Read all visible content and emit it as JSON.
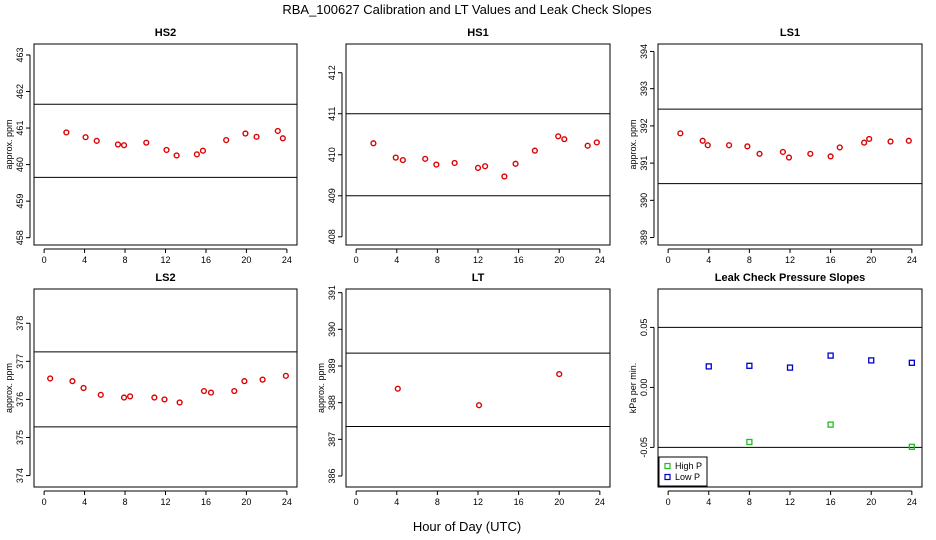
{
  "figure": {
    "title": "RBA_100627  Calibration and LT Values and Leak Check Slopes",
    "xlabel": "Hour of Day (UTC)"
  },
  "chart_data": [
    {
      "type": "scatter",
      "title": "HS2",
      "ylabel": "approx. ppm",
      "xlim": [
        -1,
        25
      ],
      "ylim": [
        457.8,
        463.3
      ],
      "xticks": [
        0,
        4,
        8,
        12,
        16,
        20,
        24
      ],
      "yticks": [
        458,
        459,
        460,
        461,
        462,
        463
      ],
      "hlines": [
        461.65,
        459.65
      ],
      "series": [
        {
          "color": "#dd0000",
          "marker": "circle",
          "x": [
            2.2,
            4.1,
            5.2,
            7.3,
            7.9,
            10.1,
            12.1,
            13.1,
            15.1,
            15.7,
            18.0,
            19.9,
            21.0,
            23.1,
            23.6
          ],
          "y": [
            460.88,
            460.75,
            460.65,
            460.55,
            460.53,
            460.6,
            460.4,
            460.25,
            460.28,
            460.38,
            460.67,
            460.85,
            460.76,
            460.92,
            460.72
          ]
        }
      ]
    },
    {
      "type": "scatter",
      "title": "HS1",
      "ylabel": "",
      "xlim": [
        -1,
        25
      ],
      "ylim": [
        407.8,
        412.7
      ],
      "xticks": [
        0,
        4,
        8,
        12,
        16,
        20,
        24
      ],
      "yticks": [
        408,
        409,
        410,
        411,
        412
      ],
      "hlines": [
        411.0,
        409.0
      ],
      "series": [
        {
          "color": "#dd0000",
          "marker": "circle",
          "x": [
            1.7,
            3.9,
            4.6,
            6.8,
            7.9,
            9.7,
            12.0,
            12.7,
            14.6,
            15.7,
            17.6,
            19.9,
            20.5,
            22.8,
            23.7
          ],
          "y": [
            410.28,
            409.93,
            409.87,
            409.9,
            409.76,
            409.8,
            409.68,
            409.72,
            409.47,
            409.78,
            410.1,
            410.45,
            410.38,
            410.22,
            410.3
          ]
        }
      ]
    },
    {
      "type": "scatter",
      "title": "LS1",
      "ylabel": "approx. ppm",
      "xlim": [
        -1,
        25
      ],
      "ylim": [
        388.8,
        394.2
      ],
      "xticks": [
        0,
        4,
        8,
        12,
        16,
        20,
        24
      ],
      "yticks": [
        389,
        390,
        391,
        392,
        393,
        394
      ],
      "hlines": [
        392.45,
        390.45
      ],
      "series": [
        {
          "color": "#dd0000",
          "marker": "circle",
          "x": [
            1.2,
            3.4,
            3.9,
            6.0,
            7.8,
            9.0,
            11.3,
            11.9,
            14.0,
            16.0,
            16.9,
            19.3,
            19.8,
            21.9,
            23.7
          ],
          "y": [
            391.8,
            391.6,
            391.48,
            391.48,
            391.45,
            391.25,
            391.3,
            391.15,
            391.25,
            391.18,
            391.42,
            391.55,
            391.65,
            391.58,
            391.6
          ]
        }
      ]
    },
    {
      "type": "scatter",
      "title": "LS2",
      "ylabel": "approx. ppm",
      "xlim": [
        -1,
        25
      ],
      "ylim": [
        373.7,
        378.9
      ],
      "xticks": [
        0,
        4,
        8,
        12,
        16,
        20,
        24
      ],
      "yticks": [
        374,
        375,
        376,
        377,
        378
      ],
      "hlines": [
        377.25,
        375.28
      ],
      "series": [
        {
          "color": "#dd0000",
          "marker": "circle",
          "x": [
            0.6,
            2.8,
            3.9,
            5.6,
            7.9,
            8.5,
            10.9,
            11.9,
            13.4,
            15.8,
            16.5,
            18.8,
            19.8,
            21.6,
            23.9
          ],
          "y": [
            376.55,
            376.48,
            376.3,
            376.12,
            376.05,
            376.08,
            376.05,
            376.0,
            375.92,
            376.22,
            376.18,
            376.22,
            376.48,
            376.52,
            376.62
          ]
        }
      ]
    },
    {
      "type": "scatter",
      "title": "LT",
      "ylabel": "approx. ppm",
      "xlim": [
        -1,
        25
      ],
      "ylim": [
        385.7,
        391.1
      ],
      "xticks": [
        0,
        4,
        8,
        12,
        16,
        20,
        24
      ],
      "yticks": [
        386,
        387,
        388,
        389,
        390,
        391
      ],
      "hlines": [
        389.35,
        387.35
      ],
      "series": [
        {
          "color": "#dd0000",
          "marker": "circle",
          "x": [
            4.1,
            12.1,
            20.0
          ],
          "y": [
            388.38,
            387.93,
            388.78
          ]
        }
      ]
    },
    {
      "type": "scatter",
      "title": "Leak Check Pressure Slopes",
      "ylabel": "kPa per min.",
      "xlim": [
        -1,
        25
      ],
      "ylim": [
        -0.083,
        0.082
      ],
      "xticks": [
        0,
        4,
        8,
        12,
        16,
        20,
        24
      ],
      "yticks": [
        -0.05,
        0.0,
        0.05
      ],
      "ytick_labels": [
        "-0.05",
        "0.00",
        "0.05"
      ],
      "hlines": [
        0.05,
        -0.05
      ],
      "legend": {
        "position": "bottom-left",
        "entries": [
          "High P",
          "Low P"
        ]
      },
      "series": [
        {
          "name": "High P",
          "color": "#22bb22",
          "marker": "square",
          "x": [
            8.0,
            16.0,
            24.0
          ],
          "y": [
            -0.0455,
            -0.031,
            -0.0495
          ]
        },
        {
          "name": "Low P",
          "color": "#0000cc",
          "marker": "square",
          "x": [
            4.0,
            8.0,
            12.0,
            16.0,
            20.0,
            24.0
          ],
          "y": [
            0.0175,
            0.018,
            0.0165,
            0.0265,
            0.0225,
            0.0205
          ]
        }
      ]
    }
  ]
}
